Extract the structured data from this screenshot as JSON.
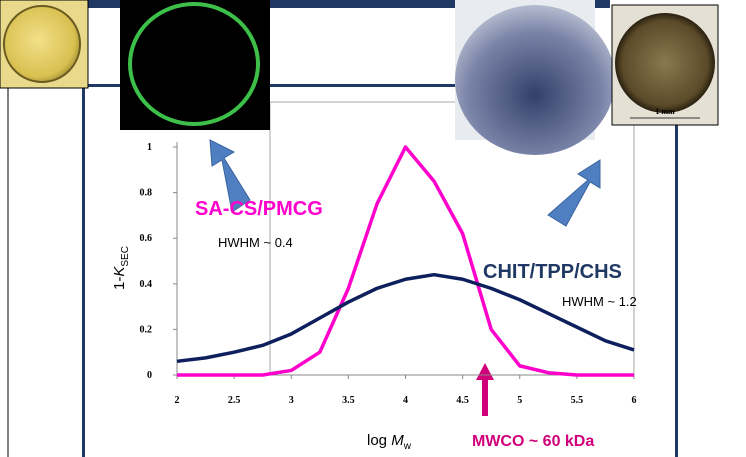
{
  "chart_data": {
    "type": "line",
    "x": [
      2,
      2.25,
      2.5,
      2.75,
      3,
      3.25,
      3.5,
      3.75,
      4,
      4.25,
      4.5,
      4.75,
      5,
      5.25,
      5.5,
      5.75,
      6
    ],
    "series": [
      {
        "name": "SA-CS/PMCG",
        "color": "#ff00cc",
        "values": [
          0,
          0,
          0,
          0,
          0.02,
          0.1,
          0.38,
          0.75,
          1.0,
          0.85,
          0.62,
          0.2,
          0.04,
          0.01,
          0,
          0,
          0
        ]
      },
      {
        "name": "CHIT/TPP/CHS",
        "color": "#0d1f5c",
        "values": [
          0.06,
          0.075,
          0.1,
          0.13,
          0.18,
          0.25,
          0.32,
          0.38,
          0.42,
          0.44,
          0.42,
          0.38,
          0.33,
          0.27,
          0.21,
          0.15,
          0.11
        ]
      }
    ],
    "xlim": [
      2,
      6
    ],
    "xticks": [
      2,
      2.5,
      3,
      3.5,
      4,
      4.5,
      5,
      5.5,
      6
    ],
    "ylim": [
      0,
      1
    ],
    "yticks": [
      0,
      0.2,
      0.4,
      0.6,
      0.8,
      1
    ],
    "ylabel": {
      "prefix": "1-",
      "symbol": "K",
      "subscript": "SEC"
    },
    "xlabel": {
      "prefix": "log ",
      "symbol": "M",
      "subscript": "w"
    },
    "annotations": {
      "hwhm_pink": "HWHM ~ 0.4",
      "hwhm_blue": "HWHM ~ 1.2",
      "mwco": "MWCO ~ 60 kDa",
      "scale_bar": "1 mm"
    }
  }
}
